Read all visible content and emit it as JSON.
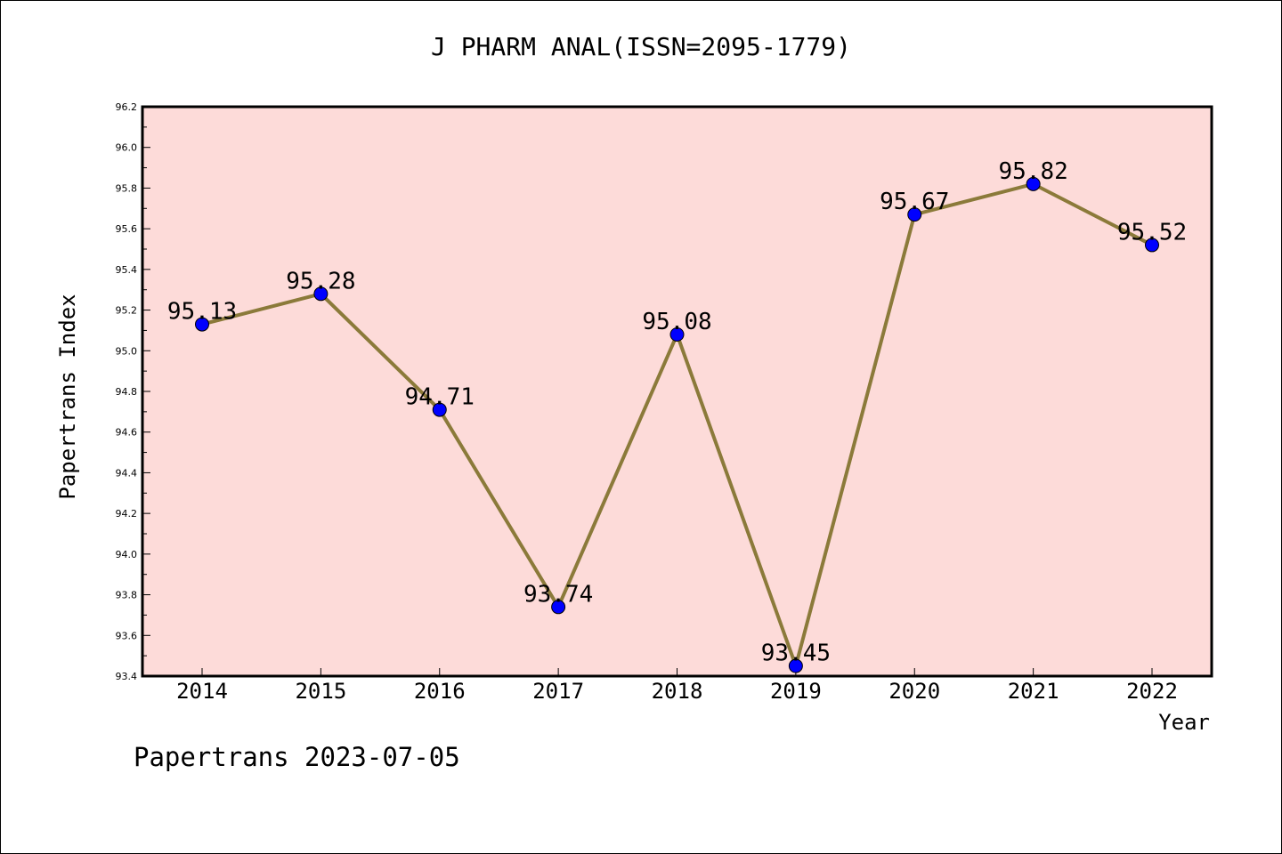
{
  "chart_data": {
    "type": "line",
    "title": "J PHARM ANAL(ISSN=2095-1779)",
    "xlabel": "Year",
    "ylabel": "Papertrans Index",
    "categories": [
      "2014",
      "2015",
      "2016",
      "2017",
      "2018",
      "2019",
      "2020",
      "2021",
      "2022"
    ],
    "series": [
      {
        "values": [
          95.13,
          95.28,
          94.71,
          93.74,
          95.08,
          93.45,
          95.67,
          95.82,
          95.52
        ],
        "data_labels": [
          "95.13",
          "95.28",
          "94.71",
          "93.74",
          "95.08",
          "93.45",
          "95.67",
          "95.82",
          "95.52"
        ]
      }
    ],
    "ylim": [
      93.4,
      96.2
    ],
    "yticks": [
      "93.4",
      "93.6",
      "93.8",
      "94.0",
      "94.2",
      "94.4",
      "94.6",
      "94.8",
      "95.0",
      "95.2",
      "95.4",
      "95.6",
      "95.8",
      "96.0",
      "96.2"
    ],
    "grid": false,
    "colors": {
      "line": "#8B7A3A",
      "marker": "#0000FF",
      "plot_background": "#FDDBD9"
    }
  },
  "footer": {
    "note": "Papertrans 2023-07-05"
  }
}
